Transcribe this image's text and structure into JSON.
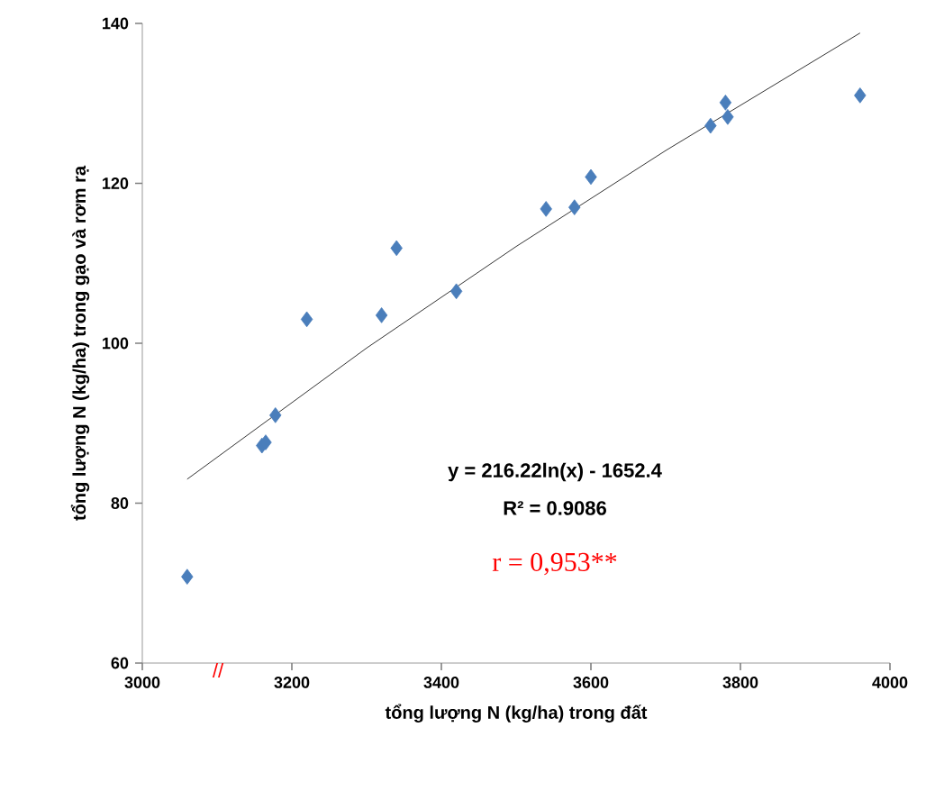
{
  "chart_data": {
    "type": "scatter",
    "xlabel": "tổng lượng N (kg/ha) trong đất",
    "ylabel": "tổng lượng N (kg/ha) trong gạo và rơm rạ",
    "xlim": [
      3000,
      4000
    ],
    "xticks": [
      3000,
      3200,
      3400,
      3600,
      3800,
      4000
    ],
    "ylim": [
      60,
      140
    ],
    "yticks": [
      60,
      80,
      100,
      120,
      140
    ],
    "marker": "diamond",
    "series": [
      {
        "color": "#4a7ebb",
        "x": [
          3060,
          3160,
          3165,
          3178,
          3220,
          3320,
          3340,
          3420,
          3540,
          3578,
          3600,
          3760,
          3780,
          3783,
          3960
        ],
        "values": [
          70.8,
          87.2,
          87.6,
          91.0,
          103.0,
          103.5,
          111.9,
          106.5,
          116.8,
          117.0,
          120.8,
          127.2,
          130.1,
          128.3,
          131.0
        ]
      },
      {
        "type": "line",
        "color": "#000000",
        "marker": "none",
        "x": [
          3060,
          3300,
          3500,
          3700,
          3960
        ],
        "values": [
          83.0,
          99.4,
          112.1,
          124.1,
          138.8
        ]
      }
    ],
    "annotations": [
      "y = 216.22ln(x) - 1652.4",
      "R² = 0.9086",
      "r = 0,953**",
      "//"
    ]
  }
}
